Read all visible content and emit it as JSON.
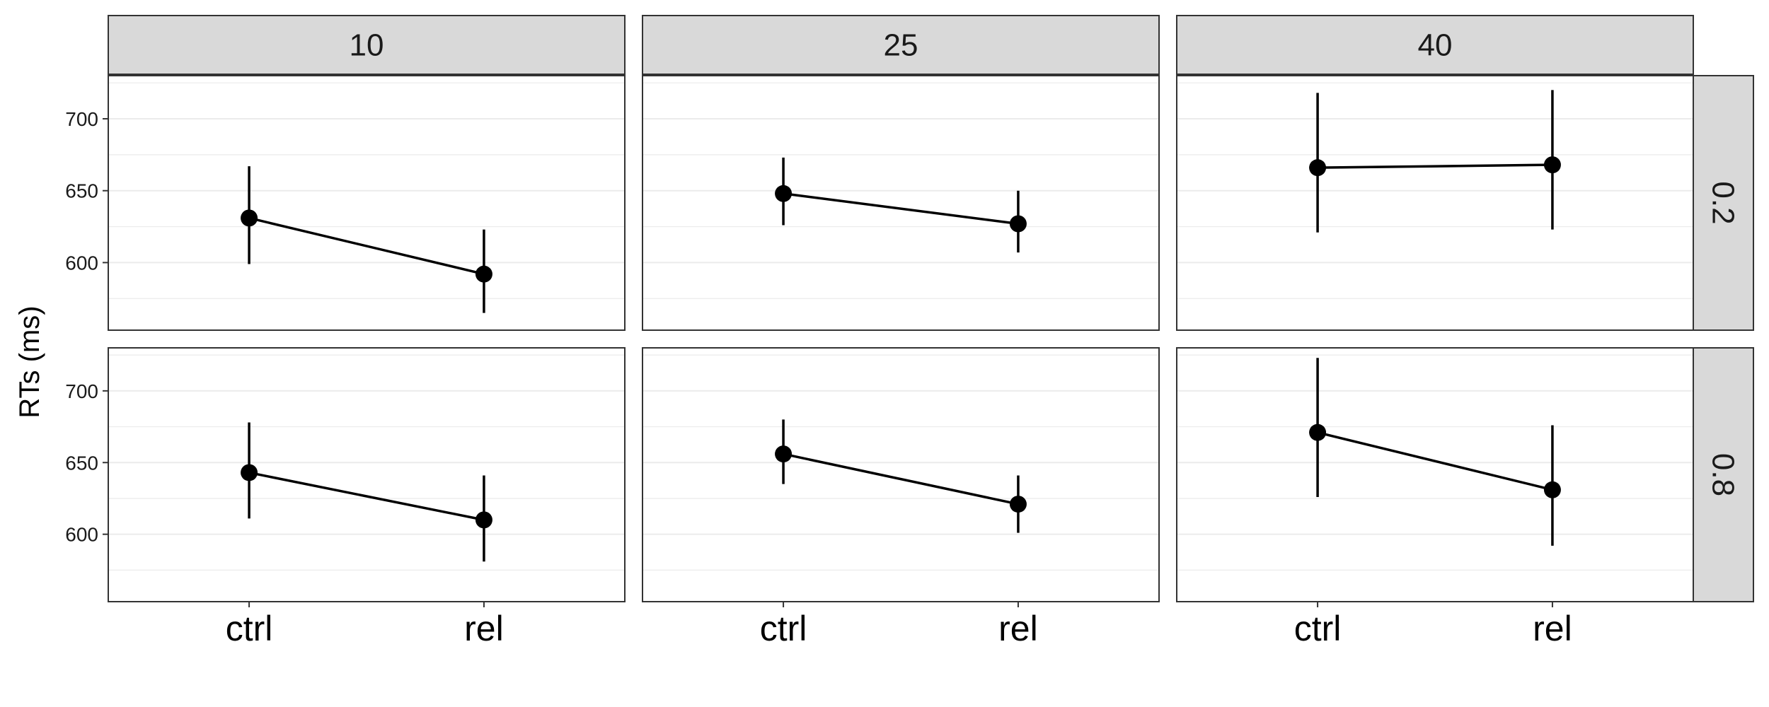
{
  "chart_data": {
    "type": "line",
    "ylabel": "RTs (ms)",
    "xlabel": "",
    "categories": [
      "ctrl",
      "rel"
    ],
    "y_ticks": [
      600,
      650,
      700
    ],
    "ylim": [
      553,
      730
    ],
    "col_facets": [
      "10",
      "25",
      "40"
    ],
    "row_facets": [
      "0.2",
      "0.8"
    ],
    "grid": true,
    "colors": {
      "panel_border": "#333333",
      "strip_fill": "#d9d9d9",
      "grid": "#ebebeb",
      "series": "#000000"
    },
    "panels": [
      {
        "col": "10",
        "row": "0.2",
        "points": [
          {
            "x": "ctrl",
            "y": 631,
            "ymin": 599,
            "ymax": 667
          },
          {
            "x": "rel",
            "y": 592,
            "ymin": 565,
            "ymax": 623
          }
        ]
      },
      {
        "col": "25",
        "row": "0.2",
        "points": [
          {
            "x": "ctrl",
            "y": 648,
            "ymin": 626,
            "ymax": 673
          },
          {
            "x": "rel",
            "y": 627,
            "ymin": 607,
            "ymax": 650
          }
        ]
      },
      {
        "col": "40",
        "row": "0.2",
        "points": [
          {
            "x": "ctrl",
            "y": 666,
            "ymin": 621,
            "ymax": 718
          },
          {
            "x": "rel",
            "y": 668,
            "ymin": 623,
            "ymax": 720
          }
        ]
      },
      {
        "col": "10",
        "row": "0.8",
        "points": [
          {
            "x": "ctrl",
            "y": 643,
            "ymin": 611,
            "ymax": 678
          },
          {
            "x": "rel",
            "y": 610,
            "ymin": 581,
            "ymax": 641
          }
        ]
      },
      {
        "col": "25",
        "row": "0.8",
        "points": [
          {
            "x": "ctrl",
            "y": 656,
            "ymin": 635,
            "ymax": 680
          },
          {
            "x": "rel",
            "y": 621,
            "ymin": 601,
            "ymax": 641
          }
        ]
      },
      {
        "col": "40",
        "row": "0.8",
        "points": [
          {
            "x": "ctrl",
            "y": 671,
            "ymin": 626,
            "ymax": 723
          },
          {
            "x": "rel",
            "y": 631,
            "ymin": 592,
            "ymax": 676
          }
        ]
      }
    ]
  }
}
